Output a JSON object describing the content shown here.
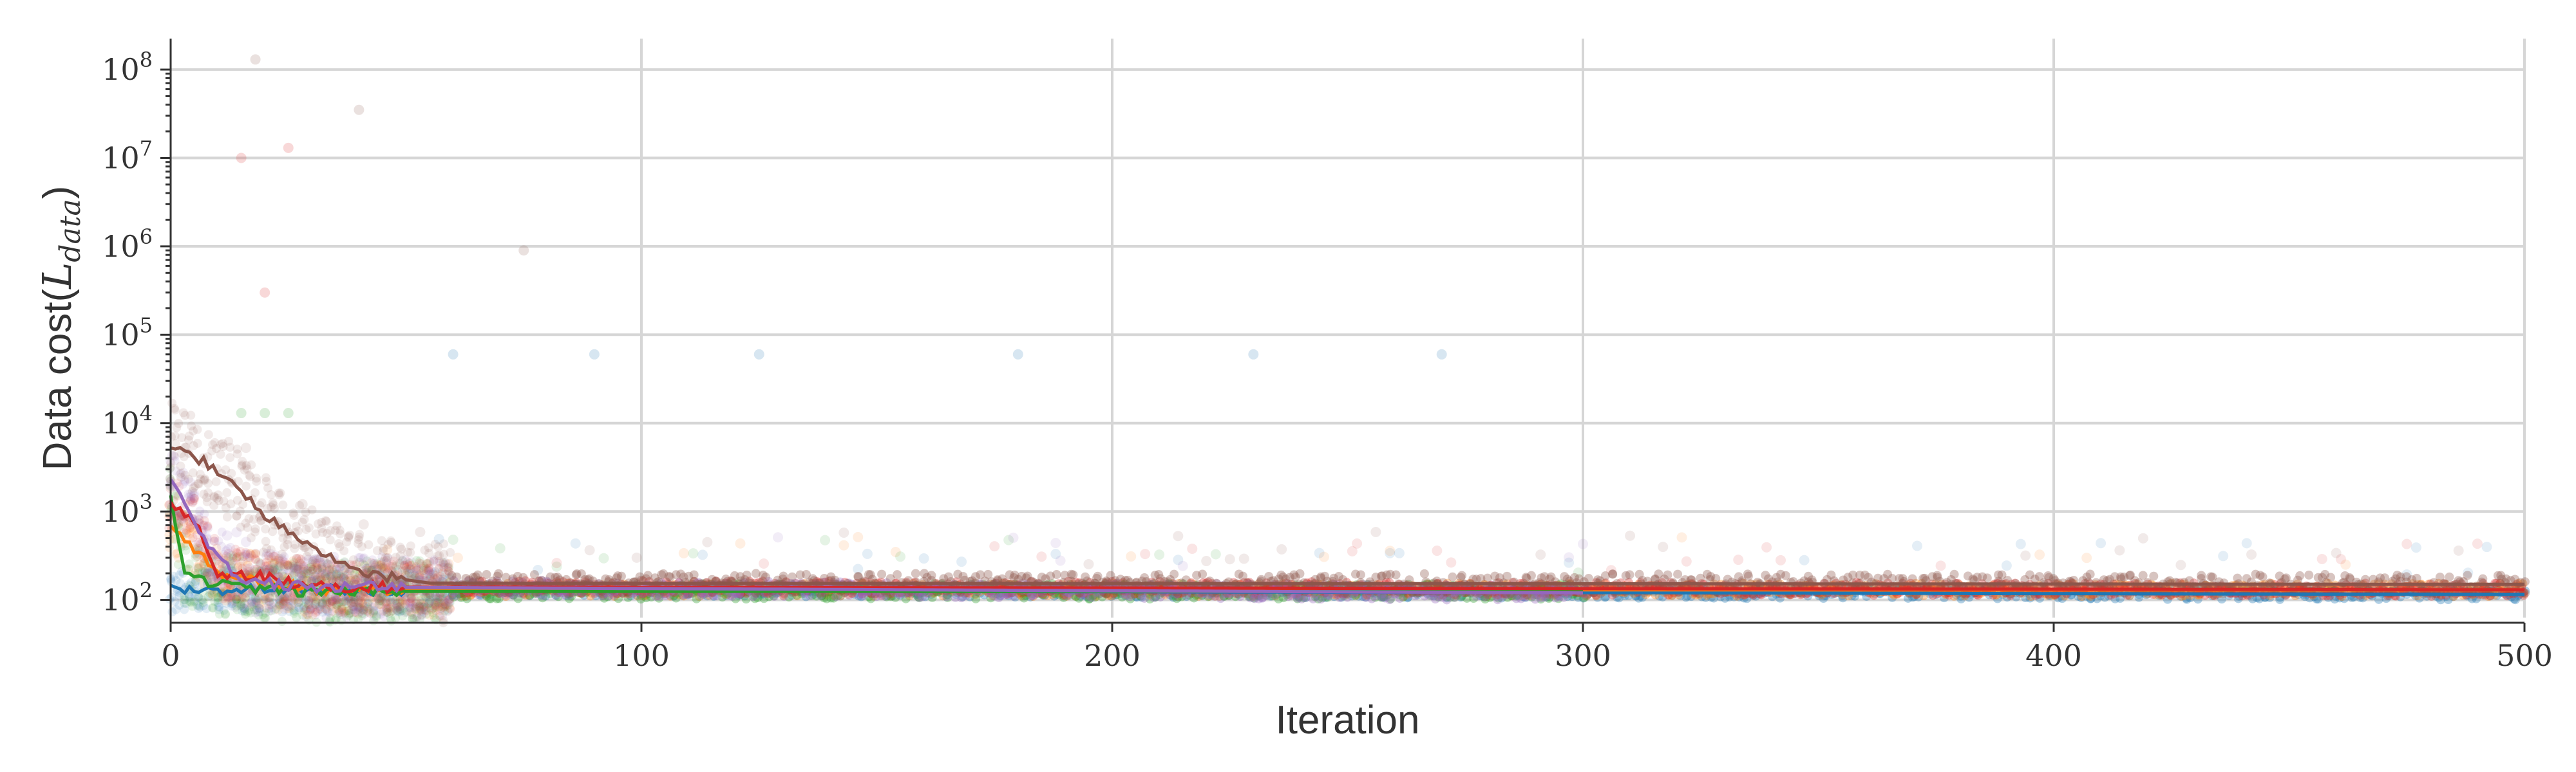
{
  "chart_data": {
    "type": "scatter",
    "title": "",
    "xlabel": "Iteration",
    "ylabel": "Data cost",
    "ylabel_math": "L_data",
    "xlim": [
      0,
      500
    ],
    "ylim_log10": [
      1.8,
      8.35
    ],
    "yscale": "log",
    "grid": true,
    "legend": "none",
    "x_ticks": [
      0,
      100,
      200,
      300,
      400,
      500
    ],
    "x_tick_labels": [
      "0",
      "100",
      "200",
      "300",
      "400",
      "500"
    ],
    "y_ticks_log10": [
      2,
      3,
      4,
      5,
      6,
      7,
      8
    ],
    "y_tick_labels": [
      {
        "base": "10",
        "exp": "2"
      },
      {
        "base": "10",
        "exp": "3"
      },
      {
        "base": "10",
        "exp": "4"
      },
      {
        "base": "10",
        "exp": "5"
      },
      {
        "base": "10",
        "exp": "6"
      },
      {
        "base": "10",
        "exp": "7"
      },
      {
        "base": "10",
        "exp": "8"
      }
    ],
    "series": [
      {
        "color": "#1f77b4",
        "end_x": 500,
        "final": 115,
        "start": 130,
        "mean_curve": [
          [
            0,
            130
          ],
          [
            500,
            115
          ]
        ],
        "scatter_spread": 0.25,
        "sparse_outliers": [
          [
            60,
            60000
          ],
          [
            90,
            60000
          ],
          [
            125,
            60000
          ],
          [
            180,
            60000
          ],
          [
            230,
            60000
          ],
          [
            270,
            60000
          ]
        ]
      },
      {
        "color": "#ff7f0e",
        "end_x": 500,
        "final": 130,
        "start": 700,
        "mean_curve": [
          [
            0,
            700
          ],
          [
            10,
            200
          ],
          [
            30,
            130
          ],
          [
            500,
            130
          ]
        ],
        "scatter_spread": 0.3,
        "sparse_outliers": []
      },
      {
        "color": "#2ca02c",
        "end_x": 300,
        "final": 125,
        "start": 1500,
        "mean_curve": [
          [
            0,
            1500
          ],
          [
            3,
            200
          ],
          [
            10,
            150
          ],
          [
            25,
            125
          ],
          [
            300,
            125
          ]
        ],
        "scatter_spread": 0.35,
        "sparse_outliers": [
          [
            15,
            13000
          ],
          [
            20,
            13000
          ],
          [
            25,
            13000
          ]
        ]
      },
      {
        "color": "#d62728",
        "end_x": 500,
        "final": 130,
        "start": 1200,
        "mean_curve": [
          [
            0,
            1200
          ],
          [
            5,
            800
          ],
          [
            10,
            200
          ],
          [
            20,
            180
          ],
          [
            30,
            140
          ],
          [
            500,
            130
          ]
        ],
        "scatter_spread": 0.3,
        "sparse_outliers": [
          [
            15,
            10000000
          ],
          [
            20,
            300000
          ],
          [
            25,
            13000000
          ]
        ]
      },
      {
        "color": "#9467bd",
        "end_x": 300,
        "final": 120,
        "start": 2500,
        "mean_curve": [
          [
            0,
            2500
          ],
          [
            5,
            800
          ],
          [
            10,
            300
          ],
          [
            15,
            160
          ],
          [
            30,
            140
          ],
          [
            300,
            120
          ]
        ],
        "scatter_spread": 0.35,
        "sparse_outliers": []
      },
      {
        "color": "#8c564b",
        "end_x": 500,
        "final": 150,
        "start": 6000,
        "mean_curve": [
          [
            0,
            6000
          ],
          [
            10,
            3000
          ],
          [
            20,
            900
          ],
          [
            30,
            400
          ],
          [
            40,
            200
          ],
          [
            55,
            155
          ],
          [
            500,
            150
          ]
        ],
        "scatter_spread": 0.45,
        "sparse_outliers": [
          [
            18,
            130000000
          ],
          [
            40,
            35000000
          ],
          [
            75,
            900000
          ]
        ]
      }
    ]
  }
}
